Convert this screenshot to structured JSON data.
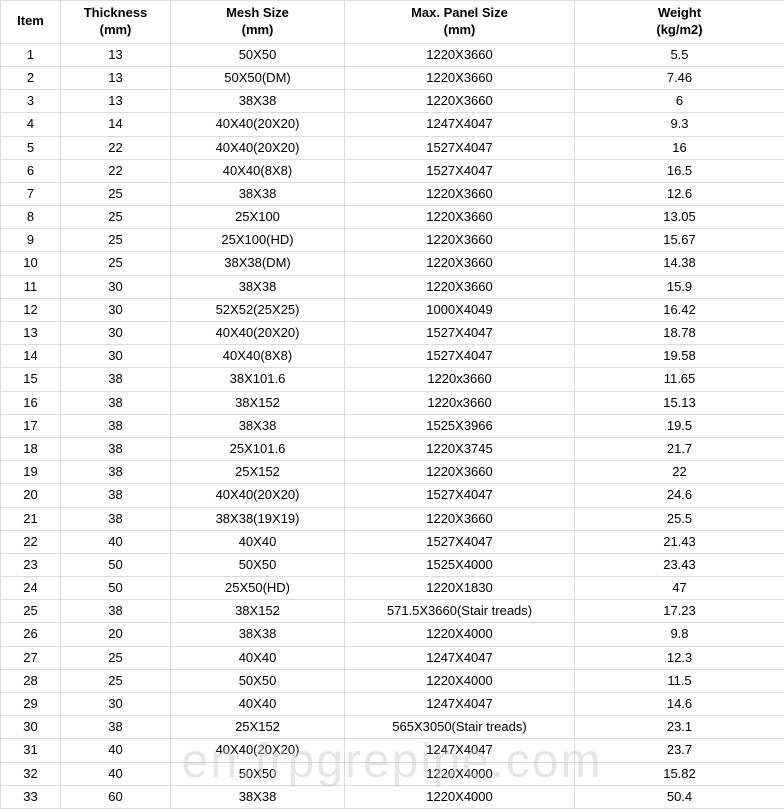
{
  "table": {
    "col_widths": [
      "60px",
      "110px",
      "174px",
      "230px",
      "210px"
    ],
    "columns": [
      {
        "main": "Item",
        "sub": ""
      },
      {
        "main": "Thickness",
        "sub": "(mm)"
      },
      {
        "main": "Mesh Size",
        "sub": "(mm)"
      },
      {
        "main": "Max. Panel Size",
        "sub": "(mm)"
      },
      {
        "main": "Weight",
        "sub": "(kg/m2)"
      }
    ],
    "rows": [
      [
        "1",
        "13",
        "50X50",
        "1220X3660",
        "5.5"
      ],
      [
        "2",
        "13",
        "50X50(DM)",
        "1220X3660",
        "7.46"
      ],
      [
        "3",
        "13",
        "38X38",
        "1220X3660",
        "6"
      ],
      [
        "4",
        "14",
        "40X40(20X20)",
        "1247X4047",
        "9.3"
      ],
      [
        "5",
        "22",
        "40X40(20X20)",
        "1527X4047",
        "16"
      ],
      [
        "6",
        "22",
        "40X40(8X8)",
        "1527X4047",
        "16.5"
      ],
      [
        "7",
        "25",
        "38X38",
        "1220X3660",
        "12.6"
      ],
      [
        "8",
        "25",
        "25X100",
        "1220X3660",
        "13.05"
      ],
      [
        "9",
        "25",
        "25X100(HD)",
        "1220X3660",
        "15.67"
      ],
      [
        "10",
        "25",
        "38X38(DM)",
        "1220X3660",
        "14.38"
      ],
      [
        "11",
        "30",
        "38X38",
        "1220X3660",
        "15.9"
      ],
      [
        "12",
        "30",
        "52X52(25X25)",
        "1000X4049",
        "16.42"
      ],
      [
        "13",
        "30",
        "40X40(20X20)",
        "1527X4047",
        "18.78"
      ],
      [
        "14",
        "30",
        "40X40(8X8)",
        "1527X4047",
        "19.58"
      ],
      [
        "15",
        "38",
        "38X101.6",
        "1220x3660",
        "11.65"
      ],
      [
        "16",
        "38",
        "38X152",
        "1220x3660",
        "15.13"
      ],
      [
        "17",
        "38",
        "38X38",
        "1525X3966",
        "19.5"
      ],
      [
        "18",
        "38",
        "25X101.6",
        "1220X3745",
        "21.7"
      ],
      [
        "19",
        "38",
        "25X152",
        "1220X3660",
        "22"
      ],
      [
        "20",
        "38",
        "40X40(20X20)",
        "1527X4047",
        "24.6"
      ],
      [
        "21",
        "38",
        "38X38(19X19)",
        "1220X3660",
        "25.5"
      ],
      [
        "22",
        "40",
        "40X40",
        "1527X4047",
        "21.43"
      ],
      [
        "23",
        "50",
        "50X50",
        "1525X4000",
        "23.43"
      ],
      [
        "24",
        "50",
        "25X50(HD)",
        "1220X1830",
        "47"
      ],
      [
        "25",
        "38",
        "38X152",
        "571.5X3660(Stair treads)",
        "17.23"
      ],
      [
        "26",
        "20",
        "38X38",
        "1220X4000",
        "9.8"
      ],
      [
        "27",
        "25",
        "40X40",
        "1247X4047",
        "12.3"
      ],
      [
        "28",
        "25",
        "50X50",
        "1220X4000",
        "11.5"
      ],
      [
        "29",
        "30",
        "40X40",
        "1247X4047",
        "14.6"
      ],
      [
        "30",
        "38",
        "25X152",
        "565X3050(Stair treads)",
        "23.1"
      ],
      [
        "31",
        "40",
        "40X40(20X20)",
        "1247X4047",
        "23.7"
      ],
      [
        "32",
        "40",
        "50X50",
        "1220X4000",
        "15.82"
      ],
      [
        "33",
        "60",
        "38X38",
        "1220X4000",
        "50.4"
      ]
    ]
  },
  "watermark": "en.frpgrepipe.com",
  "colors": {
    "border": "#dcdcdc",
    "text": "#000000",
    "background": "#ffffff",
    "watermark": "rgba(200,200,200,0.45)"
  }
}
